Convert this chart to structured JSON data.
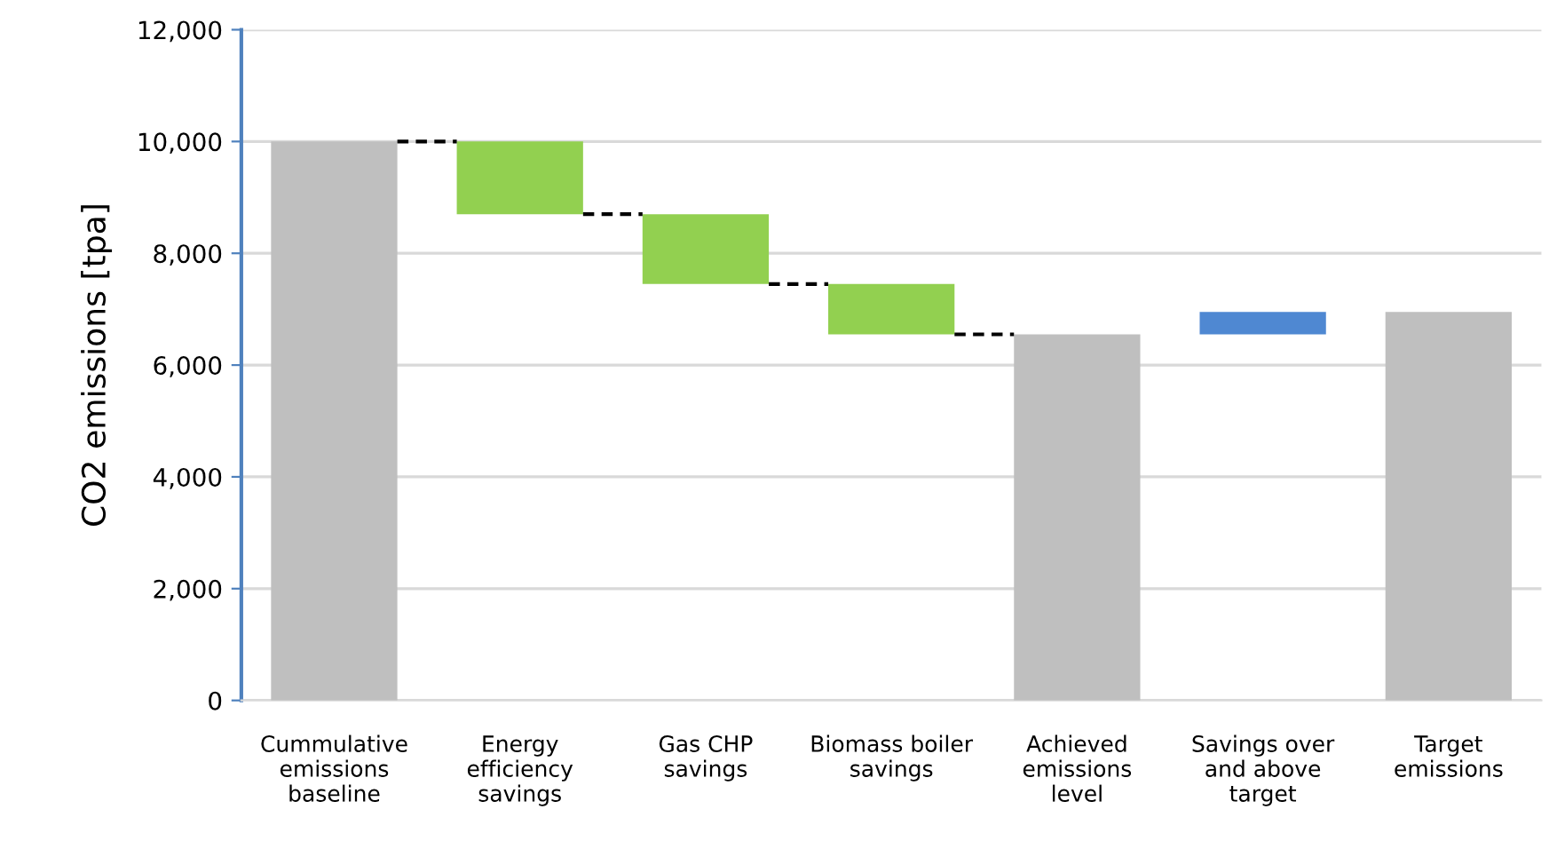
{
  "chart_data": {
    "type": "bar",
    "ylabel": "CO2 emissions [tpa]",
    "categories": [
      "Cummulative\nemissions\nbaseline",
      "Energy\nefficiency\nsavings",
      "Gas CHP\nsavings",
      "Biomass boiler\nsavings",
      "Achieved\nemissions\nlevel",
      "Savings over\nand above\ntarget",
      "Target\nemissions"
    ],
    "values": [
      10000,
      1300,
      1250,
      900,
      6550,
      400,
      6950
    ],
    "base": [
      0,
      8700,
      7450,
      6550,
      0,
      6550,
      0
    ],
    "colors": [
      "#bfbfbf",
      "#92d050",
      "#92d050",
      "#92d050",
      "#bfbfbf",
      "#4f88d2",
      "#bfbfbf"
    ],
    "ylim": [
      0,
      12000
    ],
    "yticks": [
      {
        "value": 0,
        "label": "0"
      },
      {
        "value": 2000,
        "label": "2,000"
      },
      {
        "value": 4000,
        "label": "4,000"
      },
      {
        "value": 6000,
        "label": "6,000"
      },
      {
        "value": 8000,
        "label": "8,000"
      },
      {
        "value": 10000,
        "label": "10,000"
      },
      {
        "value": 12000,
        "label": "12,000"
      }
    ],
    "grid": "y"
  }
}
